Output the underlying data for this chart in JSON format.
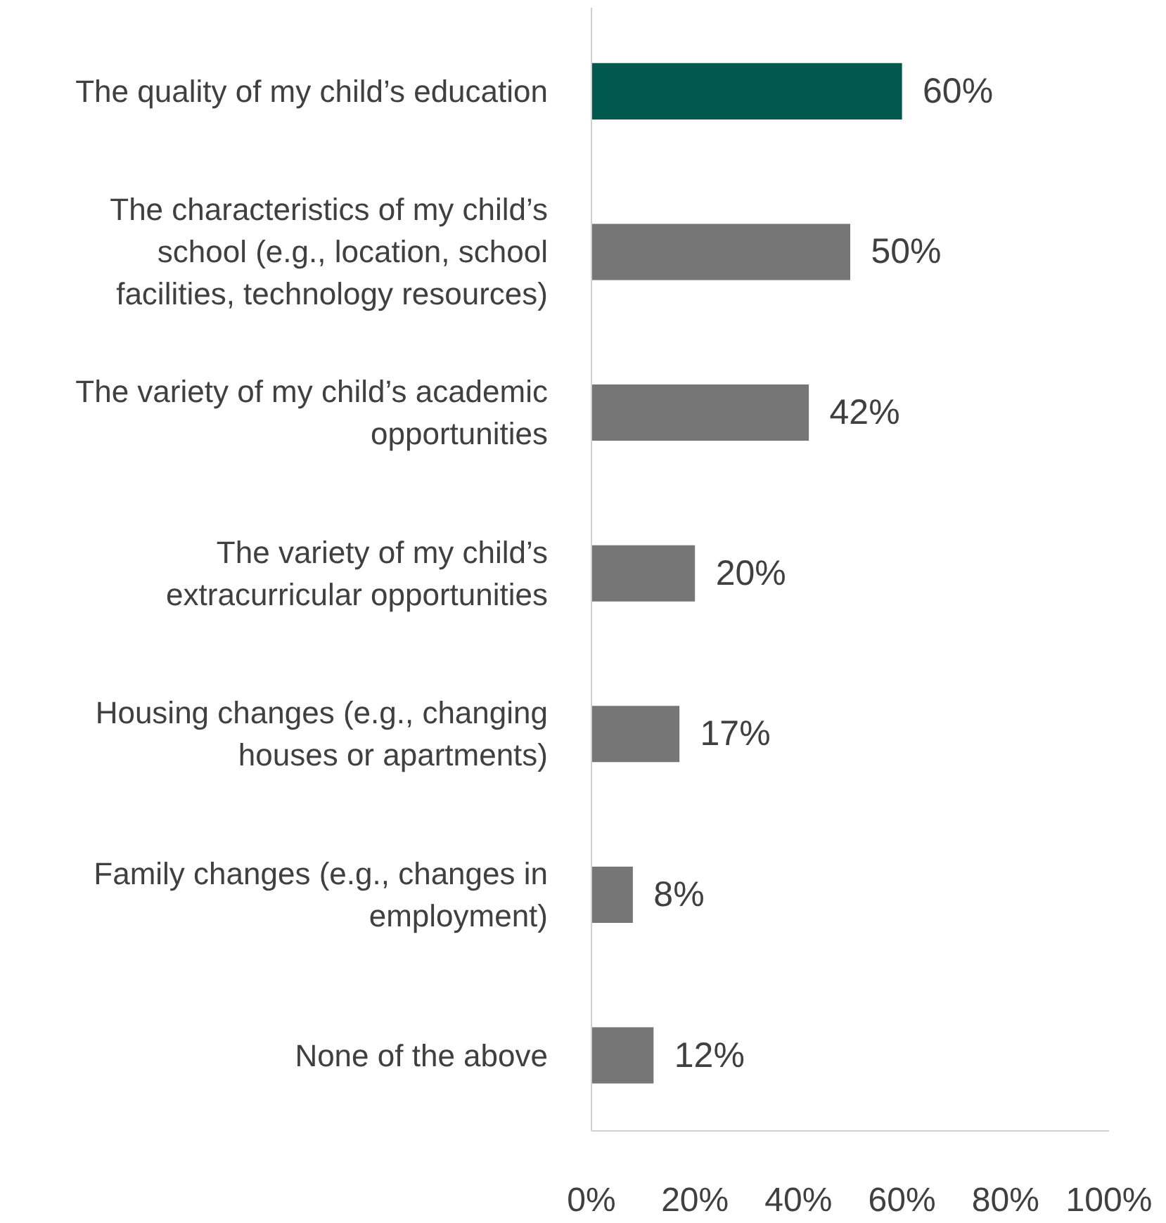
{
  "chart_data": {
    "type": "bar",
    "orientation": "horizontal",
    "categories": [
      "The quality of my child’s education",
      "The characteristics of my child’s school (e.g., location, school facilities, technology resources)",
      "The variety of my child’s academic opportunities",
      "The variety of my child’s extracurricular opportunities",
      "Housing changes (e.g., changing houses or apartments)",
      "Family changes (e.g., changes in employment)",
      "None of the above"
    ],
    "values": [
      60,
      50,
      42,
      20,
      17,
      8,
      12
    ],
    "value_labels": [
      "60%",
      "50%",
      "42%",
      "20%",
      "17%",
      "8%",
      "12%"
    ],
    "colors": [
      "#00594c",
      "#767676",
      "#767676",
      "#767676",
      "#767676",
      "#767676",
      "#767676"
    ],
    "xlim": [
      0,
      100
    ],
    "xticks": [
      {
        "value": 0,
        "label": "0%"
      },
      {
        "value": 20,
        "label": "20%"
      },
      {
        "value": 40,
        "label": "40%"
      },
      {
        "value": 60,
        "label": "60%"
      },
      {
        "value": 80,
        "label": "80%"
      },
      {
        "value": 100,
        "label": "100%"
      }
    ],
    "grid": false
  }
}
